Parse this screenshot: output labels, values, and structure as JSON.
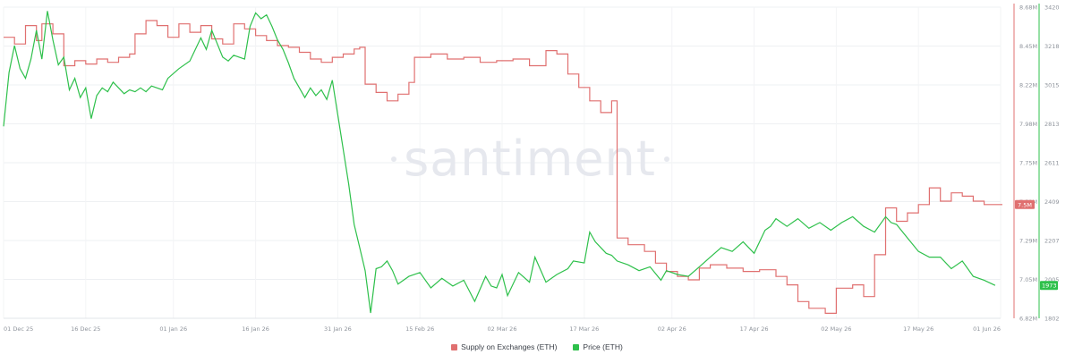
{
  "chart_data": {
    "type": "line",
    "watermark": "santiment",
    "x_ticks": [
      "01 Dec 25",
      "16 Dec 25",
      "01 Jan 26",
      "16 Jan 26",
      "31 Jan 26",
      "15 Feb 26",
      "02 Mar 26",
      "17 Mar 26",
      "02 Apr 26",
      "17 Apr 26",
      "02 May 26",
      "17 May 26",
      "01 Jun 26"
    ],
    "y_left_ticks": [
      "8.68M",
      "8.45M",
      "8.22M",
      "7.98M",
      "7.75M",
      "7.52M",
      "7.29M",
      "7.05M",
      "6.82M"
    ],
    "y_right_ticks": [
      "3420",
      "3218",
      "3015",
      "2813",
      "2611",
      "2409",
      "2207",
      "2005",
      "1802"
    ],
    "y_left_range": [
      6820000,
      8680000
    ],
    "y_right_range": [
      1802,
      3420
    ],
    "badges": {
      "supply_last": "7.5M",
      "price_last": "1973"
    },
    "colors": {
      "supply": "#e07070",
      "price": "#2ec04b"
    },
    "series": [
      {
        "name": "Supply on Exchanges (ETH)",
        "axis": "left",
        "points": [
          [
            "01 Dec 25",
            8.5
          ],
          [
            "03 Dec 25",
            8.46
          ],
          [
            "05 Dec 25",
            8.57
          ],
          [
            "07 Dec 25",
            8.48
          ],
          [
            "08 Dec 25",
            8.58
          ],
          [
            "10 Dec 25",
            8.52
          ],
          [
            "12 Dec 25",
            8.33
          ],
          [
            "14 Dec 25",
            8.36
          ],
          [
            "16 Dec 25",
            8.34
          ],
          [
            "18 Dec 25",
            8.37
          ],
          [
            "20 Dec 25",
            8.35
          ],
          [
            "22 Dec 25",
            8.38
          ],
          [
            "24 Dec 25",
            8.4
          ],
          [
            "25 Dec 25",
            8.52
          ],
          [
            "27 Dec 25",
            8.6
          ],
          [
            "29 Dec 25",
            8.57
          ],
          [
            "31 Dec 25",
            8.5
          ],
          [
            "02 Jan 26",
            8.58
          ],
          [
            "04 Jan 26",
            8.53
          ],
          [
            "06 Jan 26",
            8.57
          ],
          [
            "08 Jan 26",
            8.49
          ],
          [
            "10 Jan 26",
            8.46
          ],
          [
            "12 Jan 26",
            8.58
          ],
          [
            "14 Jan 26",
            8.55
          ],
          [
            "16 Jan 26",
            8.51
          ],
          [
            "18 Jan 26",
            8.48
          ],
          [
            "20 Jan 26",
            8.45
          ],
          [
            "22 Jan 26",
            8.44
          ],
          [
            "24 Jan 26",
            8.41
          ],
          [
            "26 Jan 26",
            8.37
          ],
          [
            "28 Jan 26",
            8.35
          ],
          [
            "30 Jan 26",
            8.38
          ],
          [
            "01 Feb 26",
            8.4
          ],
          [
            "03 Feb 26",
            8.43
          ],
          [
            "04 Feb 26",
            8.44
          ],
          [
            "05 Feb 26",
            8.22
          ],
          [
            "07 Feb 26",
            8.17
          ],
          [
            "09 Feb 26",
            8.12
          ],
          [
            "11 Feb 26",
            8.16
          ],
          [
            "13 Feb 26",
            8.23
          ],
          [
            "14 Feb 26",
            8.38
          ],
          [
            "17 Feb 26",
            8.4
          ],
          [
            "20 Feb 26",
            8.37
          ],
          [
            "23 Feb 26",
            8.38
          ],
          [
            "26 Feb 26",
            8.35
          ],
          [
            "01 Mar 26",
            8.36
          ],
          [
            "04 Mar 26",
            8.37
          ],
          [
            "07 Mar 26",
            8.33
          ],
          [
            "10 Mar 26",
            8.42
          ],
          [
            "12 Mar 26",
            8.4
          ],
          [
            "14 Mar 26",
            8.28
          ],
          [
            "16 Mar 26",
            8.2
          ],
          [
            "18 Mar 26",
            8.12
          ],
          [
            "20 Mar 26",
            8.05
          ],
          [
            "22 Mar 26",
            8.12
          ],
          [
            "23 Mar 26",
            7.3
          ],
          [
            "25 Mar 26",
            7.26
          ],
          [
            "28 Mar 26",
            7.22
          ],
          [
            "30 Mar 26",
            7.15
          ],
          [
            "01 Apr 26",
            7.1
          ],
          [
            "03 Apr 26",
            7.07
          ],
          [
            "05 Apr 26",
            7.05
          ],
          [
            "07 Apr 26",
            7.12
          ],
          [
            "09 Apr 26",
            7.14
          ],
          [
            "12 Apr 26",
            7.12
          ],
          [
            "15 Apr 26",
            7.1
          ],
          [
            "18 Apr 26",
            7.11
          ],
          [
            "21 Apr 26",
            7.07
          ],
          [
            "23 Apr 26",
            7.02
          ],
          [
            "25 Apr 26",
            6.92
          ],
          [
            "27 Apr 26",
            6.88
          ],
          [
            "30 Apr 26",
            6.85
          ],
          [
            "02 May 26",
            7.0
          ],
          [
            "05 May 26",
            7.02
          ],
          [
            "07 May 26",
            6.95
          ],
          [
            "09 May 26",
            7.2
          ],
          [
            "11 May 26",
            7.48
          ],
          [
            "13 May 26",
            7.4
          ],
          [
            "15 May 26",
            7.45
          ],
          [
            "17 May 26",
            7.5
          ],
          [
            "19 May 26",
            7.6
          ],
          [
            "21 May 26",
            7.52
          ],
          [
            "23 May 26",
            7.57
          ],
          [
            "25 May 26",
            7.55
          ],
          [
            "27 May 26",
            7.52
          ],
          [
            "29 May 26",
            7.5
          ]
        ]
      },
      {
        "name": "Price (ETH)",
        "axis": "right",
        "points": [
          [
            "01 Dec 25",
            2800
          ],
          [
            "02 Dec 25",
            3080
          ],
          [
            "03 Dec 25",
            3220
          ],
          [
            "04 Dec 25",
            3100
          ],
          [
            "05 Dec 25",
            3050
          ],
          [
            "06 Dec 25",
            3150
          ],
          [
            "07 Dec 25",
            3300
          ],
          [
            "08 Dec 25",
            3150
          ],
          [
            "09 Dec 25",
            3400
          ],
          [
            "10 Dec 25",
            3250
          ],
          [
            "11 Dec 25",
            3120
          ],
          [
            "12 Dec 25",
            3160
          ],
          [
            "13 Dec 25",
            2990
          ],
          [
            "14 Dec 25",
            3050
          ],
          [
            "15 Dec 25",
            2950
          ],
          [
            "16 Dec 25",
            3000
          ],
          [
            "17 Dec 25",
            2840
          ],
          [
            "18 Dec 25",
            2960
          ],
          [
            "19 Dec 25",
            3000
          ],
          [
            "20 Dec 25",
            2980
          ],
          [
            "21 Dec 25",
            3030
          ],
          [
            "22 Dec 25",
            3000
          ],
          [
            "23 Dec 25",
            2970
          ],
          [
            "24 Dec 25",
            2990
          ],
          [
            "25 Dec 25",
            2980
          ],
          [
            "26 Dec 25",
            3000
          ],
          [
            "27 Dec 25",
            2980
          ],
          [
            "28 Dec 25",
            3010
          ],
          [
            "29 Dec 25",
            3000
          ],
          [
            "30 Dec 25",
            2990
          ],
          [
            "31 Dec 25",
            3050
          ],
          [
            "02 Jan 26",
            3100
          ],
          [
            "04 Jan 26",
            3140
          ],
          [
            "06 Jan 26",
            3260
          ],
          [
            "07 Jan 26",
            3200
          ],
          [
            "08 Jan 26",
            3300
          ],
          [
            "10 Jan 26",
            3160
          ],
          [
            "11 Jan 26",
            3140
          ],
          [
            "12 Jan 26",
            3170
          ],
          [
            "14 Jan 26",
            3150
          ],
          [
            "15 Jan 26",
            3320
          ],
          [
            "16 Jan 26",
            3390
          ],
          [
            "17 Jan 26",
            3360
          ],
          [
            "18 Jan 26",
            3380
          ],
          [
            "19 Jan 26",
            3320
          ],
          [
            "20 Jan 26",
            3250
          ],
          [
            "21 Jan 26",
            3200
          ],
          [
            "22 Jan 26",
            3130
          ],
          [
            "23 Jan 26",
            3050
          ],
          [
            "24 Jan 26",
            3000
          ],
          [
            "25 Jan 26",
            2950
          ],
          [
            "26 Jan 26",
            3000
          ],
          [
            "27 Jan 26",
            2960
          ],
          [
            "28 Jan 26",
            2990
          ],
          [
            "29 Jan 26",
            2940
          ],
          [
            "30 Jan 26",
            3040
          ],
          [
            "31 Jan 26",
            2860
          ],
          [
            "01 Feb 26",
            2680
          ],
          [
            "02 Feb 26",
            2500
          ],
          [
            "03 Feb 26",
            2290
          ],
          [
            "04 Feb 26",
            2170
          ],
          [
            "05 Feb 26",
            2050
          ],
          [
            "06 Feb 26",
            1830
          ],
          [
            "07 Feb 26",
            2060
          ],
          [
            "08 Feb 26",
            2070
          ],
          [
            "09 Feb 26",
            2100
          ],
          [
            "10 Feb 26",
            2050
          ],
          [
            "11 Feb 26",
            1980
          ],
          [
            "13 Feb 26",
            2020
          ],
          [
            "15 Feb 26",
            2040
          ],
          [
            "17 Feb 26",
            1960
          ],
          [
            "19 Feb 26",
            2010
          ],
          [
            "21 Feb 26",
            1970
          ],
          [
            "23 Feb 26",
            2000
          ],
          [
            "25 Feb 26",
            1890
          ],
          [
            "27 Feb 26",
            2020
          ],
          [
            "28 Feb 26",
            1970
          ],
          [
            "01 Mar 26",
            1960
          ],
          [
            "02 Mar 26",
            2030
          ],
          [
            "03 Mar 26",
            1920
          ],
          [
            "05 Mar 26",
            2040
          ],
          [
            "07 Mar 26",
            1990
          ],
          [
            "08 Mar 26",
            2120
          ],
          [
            "10 Mar 26",
            1990
          ],
          [
            "12 Mar 26",
            2030
          ],
          [
            "14 Mar 26",
            2060
          ],
          [
            "15 Mar 26",
            2100
          ],
          [
            "17 Mar 26",
            2090
          ],
          [
            "18 Mar 26",
            2250
          ],
          [
            "19 Mar 26",
            2200
          ],
          [
            "21 Mar 26",
            2140
          ],
          [
            "22 Mar 26",
            2130
          ],
          [
            "23 Mar 26",
            2100
          ],
          [
            "25 Mar 26",
            2080
          ],
          [
            "27 Mar 26",
            2050
          ],
          [
            "29 Mar 26",
            2070
          ],
          [
            "31 Mar 26",
            2000
          ],
          [
            "01 Apr 26",
            2050
          ],
          [
            "03 Apr 26",
            2030
          ],
          [
            "05 Apr 26",
            2020
          ],
          [
            "07 Apr 26",
            2070
          ],
          [
            "09 Apr 26",
            2120
          ],
          [
            "11 Apr 26",
            2170
          ],
          [
            "13 Apr 26",
            2150
          ],
          [
            "15 Apr 26",
            2200
          ],
          [
            "17 Apr 26",
            2140
          ],
          [
            "19 Apr 26",
            2260
          ],
          [
            "20 Apr 26",
            2280
          ],
          [
            "21 Apr 26",
            2320
          ],
          [
            "23 Apr 26",
            2280
          ],
          [
            "25 Apr 26",
            2320
          ],
          [
            "27 Apr 26",
            2270
          ],
          [
            "29 Apr 26",
            2300
          ],
          [
            "01 May 26",
            2260
          ],
          [
            "03 May 26",
            2300
          ],
          [
            "05 May 26",
            2330
          ],
          [
            "07 May 26",
            2280
          ],
          [
            "09 May 26",
            2250
          ],
          [
            "11 May 26",
            2330
          ],
          [
            "12 May 26",
            2300
          ],
          [
            "13 May 26",
            2290
          ],
          [
            "15 May 26",
            2220
          ],
          [
            "17 May 26",
            2150
          ],
          [
            "19 May 26",
            2120
          ],
          [
            "21 May 26",
            2120
          ],
          [
            "23 May 26",
            2060
          ],
          [
            "25 May 26",
            2100
          ],
          [
            "27 May 26",
            2020
          ],
          [
            "29 May 26",
            2000
          ],
          [
            "31 May 26",
            1973
          ]
        ]
      }
    ]
  }
}
